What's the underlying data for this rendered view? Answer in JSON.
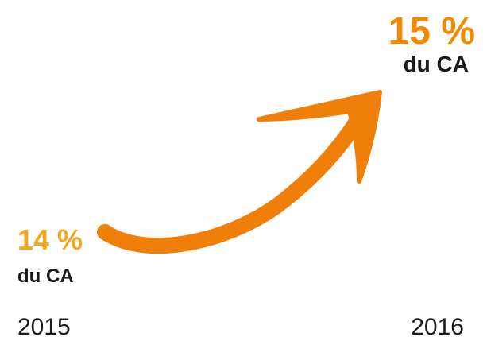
{
  "items": [
    {
      "value": "14 %",
      "label": "du CA",
      "year": "2015"
    },
    {
      "value": "15 %",
      "label": "du CA",
      "year": "2016"
    }
  ]
}
